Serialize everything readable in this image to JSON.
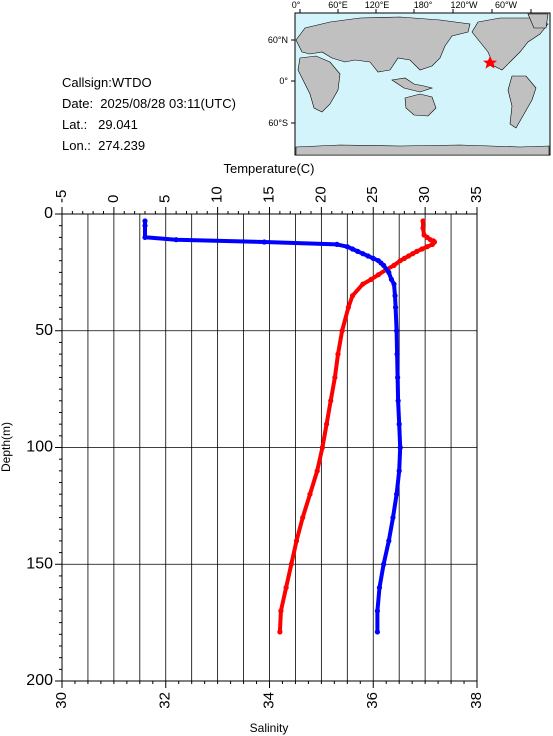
{
  "info": {
    "callsign": "Callsign:WTDO",
    "date": "Date:  2025/08/28 03:11(UTC)",
    "lat": "Lat.:   29.041",
    "lon": "Lon.:  274.239"
  },
  "map": {
    "top_lon_labels": [
      "0°",
      "60°E",
      "120°E",
      "180°",
      "120°W",
      "60°W"
    ],
    "lat_labels": [
      "60°N",
      "0°",
      "60°S"
    ],
    "ocean_color": "#d4f4fc",
    "land_color": "#c0c0c0",
    "marker_color": "#ff0000",
    "marker_lon": 274.239,
    "marker_lat": 29.041
  },
  "chart_data": {
    "type": "line",
    "xlabel_top": "Temperature(C)",
    "xlabel_bottom": "Salinity",
    "ylabel": "Depth(m)",
    "temperature_ticks": [
      "-5",
      "0",
      "5",
      "10",
      "15",
      "20",
      "25",
      "30",
      "35"
    ],
    "salinity_ticks": [
      "30",
      "32",
      "34",
      "36",
      "38"
    ],
    "depth_ticks": [
      "0",
      "50",
      "100",
      "150",
      "200"
    ],
    "temperature_range": [
      -5,
      35
    ],
    "salinity_range": [
      30,
      38
    ],
    "depth_range": [
      0,
      200
    ],
    "grid": true,
    "series": [
      {
        "axis": "temperature",
        "color": "#ff0000",
        "depth": [
          3,
          6,
          9,
          10,
          11,
          11.5,
          12,
          13,
          14,
          15,
          16,
          17,
          18,
          19,
          20,
          22,
          24,
          26,
          28,
          30,
          35,
          40,
          50,
          60,
          70,
          80,
          90,
          100,
          110,
          120,
          130,
          140,
          150,
          160,
          170,
          179
        ],
        "values": [
          29.8,
          29.8,
          29.9,
          30.2,
          30.5,
          30.8,
          30.9,
          30.7,
          30.2,
          29.7,
          29.2,
          28.8,
          28.4,
          28.0,
          27.6,
          27.0,
          26.2,
          25.5,
          24.8,
          24.0,
          23.0,
          22.6,
          22.0,
          21.6,
          21.3,
          20.9,
          20.5,
          20.1,
          19.6,
          18.9,
          18.2,
          17.6,
          17.1,
          16.6,
          16.1,
          16.0
        ]
      },
      {
        "axis": "salinity",
        "color": "#0000ff",
        "depth": [
          3,
          5,
          10,
          11,
          12,
          13,
          14,
          15,
          16,
          17,
          18,
          19,
          20,
          21,
          22,
          25,
          28,
          30,
          35,
          40,
          50,
          60,
          70,
          80,
          90,
          100,
          110,
          120,
          130,
          140,
          150,
          160,
          170,
          179
        ],
        "values": [
          31.6,
          31.6,
          31.6,
          32.2,
          33.9,
          35.3,
          35.5,
          35.6,
          35.7,
          35.8,
          35.9,
          36.0,
          36.1,
          36.15,
          36.2,
          36.3,
          36.35,
          36.4,
          36.42,
          36.43,
          36.45,
          36.46,
          36.47,
          36.48,
          36.5,
          36.52,
          36.5,
          36.45,
          36.38,
          36.3,
          36.2,
          36.12,
          36.08,
          36.08
        ]
      }
    ]
  }
}
